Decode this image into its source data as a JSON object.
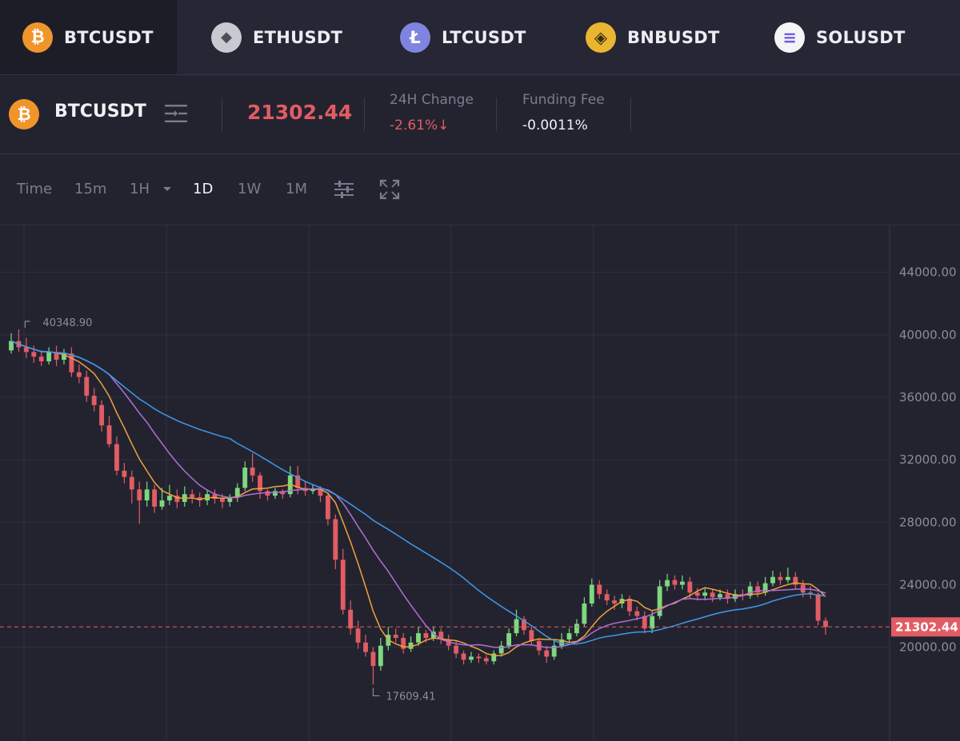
{
  "tabs": [
    {
      "label": "BTCUSDT",
      "icon": "bitcoin-icon",
      "glyph": "₿",
      "color": "#f0952c",
      "active": true
    },
    {
      "label": "ETHUSDT",
      "icon": "ethereum-icon",
      "glyph": "◆",
      "color": "#c9c9d1",
      "active": false
    },
    {
      "label": "LTCUSDT",
      "icon": "litecoin-icon",
      "glyph": "Ł",
      "color": "#7f84e0",
      "active": false
    },
    {
      "label": "BNBUSDT",
      "icon": "bnb-icon",
      "glyph": "◈",
      "color": "#eab632",
      "active": false
    },
    {
      "label": "SOLUSDT",
      "icon": "solana-icon",
      "glyph": "≡",
      "color": "#f4f4f6",
      "active": false
    }
  ],
  "header": {
    "symbol": "BTCUSDT",
    "coin_icon": "bitcoin-icon",
    "coin_glyph": "₿",
    "price": "21302.44",
    "change_label": "24H Change",
    "change_value": "-2.61%↓",
    "funding_label": "Funding Fee",
    "funding_value": "-0.0011%"
  },
  "toolbar": {
    "time": "Time",
    "interval_15m": "15m",
    "interval_1h": "1H",
    "interval_1d": "1D",
    "interval_1w": "1W",
    "interval_1m": "1M",
    "selected": "1D"
  },
  "colors": {
    "up": "#7dd87f",
    "down": "#e25c63",
    "ma_fast": "#f0a23c",
    "ma_mid": "#b06fd8",
    "ma_slow": "#3d9be9",
    "accent": "#f0952c"
  },
  "chart_data": {
    "type": "candlestick",
    "y_ticks": [
      20000,
      24000,
      28000,
      32000,
      36000,
      40000,
      44000
    ],
    "y_tick_labels": [
      "20000.00",
      "24000.00",
      "28000.00",
      "32000.00",
      "36000.00",
      "40000.00",
      "44000.00"
    ],
    "ylim": [
      14000,
      47000
    ],
    "grid": true,
    "current_price": 21302.44,
    "current_price_label": "21302.44",
    "high_marker": {
      "value": 40348.9,
      "label": "40348.90"
    },
    "low_marker": {
      "value": 17609.41,
      "label": "17609.41"
    },
    "candles": [
      [
        39000,
        39600,
        38800,
        40100
      ],
      [
        39600,
        39200,
        38900,
        40348.9
      ],
      [
        39200,
        38900,
        38500,
        39800
      ],
      [
        38900,
        38600,
        38200,
        39300
      ],
      [
        38600,
        38300,
        38000,
        39000
      ],
      [
        38300,
        38900,
        38100,
        39200
      ],
      [
        38900,
        38400,
        38000,
        39300
      ],
      [
        38400,
        38800,
        38100,
        39100
      ],
      [
        38800,
        37600,
        37300,
        39200
      ],
      [
        37600,
        37300,
        36900,
        38100
      ],
      [
        37300,
        36100,
        35700,
        37700
      ],
      [
        36100,
        35500,
        35100,
        36600
      ],
      [
        35500,
        34200,
        33800,
        35800
      ],
      [
        34200,
        33000,
        32800,
        34800
      ],
      [
        33000,
        31300,
        31000,
        33500
      ],
      [
        31300,
        30900,
        30500,
        31800
      ],
      [
        30900,
        30100,
        29200,
        31300
      ],
      [
        30100,
        29400,
        27900,
        30600
      ],
      [
        29400,
        30100,
        29000,
        30600
      ],
      [
        30100,
        29000,
        28600,
        30400
      ],
      [
        29000,
        29400,
        28800,
        30200
      ],
      [
        29400,
        29700,
        29100,
        30400
      ],
      [
        29700,
        29300,
        28900,
        30100
      ],
      [
        29300,
        29800,
        29000,
        30300
      ],
      [
        29800,
        29600,
        29200,
        30100
      ],
      [
        29600,
        29400,
        29000,
        29900
      ],
      [
        29400,
        29800,
        29100,
        30100
      ],
      [
        29800,
        29500,
        29200,
        30100
      ],
      [
        29500,
        29300,
        28900,
        29800
      ],
      [
        29300,
        29600,
        29000,
        29800
      ],
      [
        29600,
        30200,
        29300,
        30500
      ],
      [
        30200,
        31500,
        30000,
        31900
      ],
      [
        31500,
        31000,
        30600,
        32400
      ],
      [
        31000,
        30000,
        29500,
        31200
      ],
      [
        30000,
        29700,
        29400,
        30100
      ],
      [
        29700,
        30000,
        29500,
        30200
      ],
      [
        30000,
        29800,
        29500,
        30100
      ],
      [
        29800,
        31000,
        29600,
        31600
      ],
      [
        31000,
        30200,
        29800,
        31600
      ],
      [
        30200,
        30000,
        29700,
        30600
      ],
      [
        30000,
        30100,
        29800,
        30400
      ],
      [
        30100,
        29700,
        29300,
        30300
      ],
      [
        29700,
        28200,
        27800,
        29900
      ],
      [
        28200,
        25600,
        25000,
        28500
      ],
      [
        25600,
        22400,
        22100,
        26300
      ],
      [
        22400,
        21200,
        20800,
        23000
      ],
      [
        21200,
        20300,
        19900,
        21700
      ],
      [
        20300,
        19700,
        19400,
        20800
      ],
      [
        19700,
        18800,
        17609.41,
        20000
      ],
      [
        18800,
        20100,
        18500,
        20600
      ],
      [
        20100,
        20800,
        19800,
        21300
      ],
      [
        20800,
        20600,
        20300,
        21200
      ],
      [
        20600,
        19900,
        19600,
        20900
      ],
      [
        19900,
        20300,
        19700,
        20700
      ],
      [
        20300,
        20900,
        20100,
        21300
      ],
      [
        20900,
        20600,
        20300,
        21100
      ],
      [
        20600,
        21000,
        20400,
        21300
      ],
      [
        21000,
        20500,
        20200,
        21200
      ],
      [
        20500,
        20100,
        19800,
        20800
      ],
      [
        20100,
        19600,
        19300,
        20400
      ],
      [
        19600,
        19200,
        18900,
        19800
      ],
      [
        19200,
        19400,
        19000,
        19700
      ],
      [
        19400,
        19300,
        19000,
        19600
      ],
      [
        19300,
        19100,
        18900,
        19500
      ],
      [
        19100,
        19600,
        18900,
        19800
      ],
      [
        19600,
        20100,
        19400,
        20400
      ],
      [
        20100,
        20900,
        19900,
        21200
      ],
      [
        20900,
        21800,
        20700,
        22400
      ],
      [
        21800,
        21100,
        20800,
        22000
      ],
      [
        21100,
        20400,
        20100,
        21300
      ],
      [
        20400,
        19800,
        19500,
        20600
      ],
      [
        19800,
        19400,
        19000,
        20100
      ],
      [
        19400,
        20100,
        19200,
        20400
      ],
      [
        20100,
        20500,
        19900,
        20900
      ],
      [
        20500,
        20900,
        20300,
        21200
      ],
      [
        20900,
        21500,
        20700,
        21800
      ],
      [
        21500,
        22800,
        21300,
        23200
      ],
      [
        22800,
        24000,
        22600,
        24400
      ],
      [
        24000,
        23400,
        23100,
        24300
      ],
      [
        23400,
        23000,
        22700,
        23700
      ],
      [
        23000,
        22800,
        22400,
        23300
      ],
      [
        22800,
        23100,
        22500,
        23400
      ],
      [
        23100,
        22300,
        22000,
        23300
      ],
      [
        22300,
        22000,
        21700,
        22600
      ],
      [
        22000,
        21200,
        20900,
        22300
      ],
      [
        21200,
        22000,
        20900,
        22300
      ],
      [
        22000,
        23900,
        21800,
        24300
      ],
      [
        23900,
        24300,
        23600,
        24700
      ],
      [
        24300,
        24000,
        23700,
        24600
      ],
      [
        24000,
        24200,
        23700,
        24600
      ],
      [
        24200,
        23500,
        23100,
        24500
      ],
      [
        23500,
        23300,
        23000,
        23800
      ],
      [
        23300,
        23500,
        23000,
        23800
      ],
      [
        23500,
        23200,
        22900,
        23700
      ],
      [
        23200,
        23400,
        23000,
        23700
      ],
      [
        23400,
        23100,
        22800,
        23700
      ],
      [
        23100,
        23400,
        22900,
        23700
      ],
      [
        23400,
        23300,
        23000,
        23700
      ],
      [
        23300,
        23900,
        23100,
        24200
      ],
      [
        23900,
        23500,
        23200,
        24200
      ],
      [
        23500,
        24100,
        23300,
        24500
      ],
      [
        24100,
        24500,
        23900,
        24900
      ],
      [
        24500,
        24300,
        24000,
        24800
      ],
      [
        24300,
        24500,
        24100,
        25100
      ],
      [
        24500,
        24000,
        23700,
        24800
      ],
      [
        24000,
        23500,
        23200,
        24300
      ],
      [
        23500,
        23400,
        23100,
        23900
      ],
      [
        23400,
        21700,
        21400,
        23500
      ],
      [
        21700,
        21302.44,
        20800,
        21900
      ]
    ],
    "moving_averages": [
      {
        "color": "#f0a23c",
        "period": 7
      },
      {
        "color": "#b06fd8",
        "period": 14
      },
      {
        "color": "#3d9be9",
        "period": 30
      }
    ]
  }
}
